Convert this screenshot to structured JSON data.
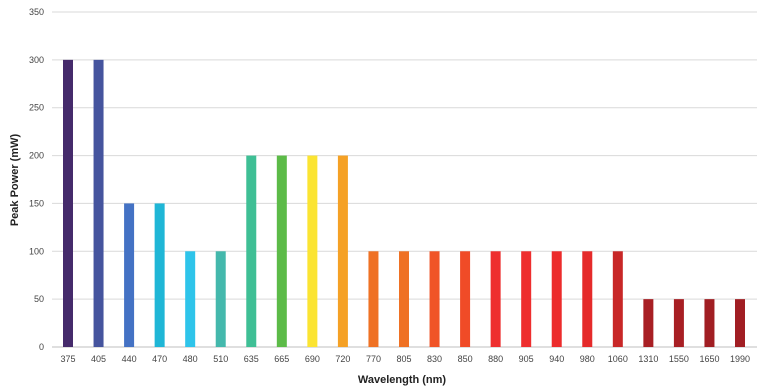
{
  "chart_data": {
    "type": "bar",
    "xlabel": "Wavelength (nm)",
    "ylabel": "Peak Power (mW)",
    "ylim": [
      0,
      350
    ],
    "yticks": [
      0,
      50,
      100,
      150,
      200,
      250,
      300,
      350
    ],
    "grid": true,
    "categories": [
      "375",
      "405",
      "440",
      "470",
      "480",
      "510",
      "635",
      "665",
      "690",
      "720",
      "770",
      "805",
      "830",
      "850",
      "880",
      "905",
      "940",
      "980",
      "1060",
      "1310",
      "1550",
      "1650",
      "1990"
    ],
    "values": [
      300,
      300,
      150,
      150,
      100,
      100,
      200,
      200,
      200,
      200,
      100,
      100,
      100,
      100,
      100,
      100,
      100,
      100,
      100,
      50,
      50,
      50,
      50
    ],
    "colors": [
      "#452a6b",
      "#45549e",
      "#4472c4",
      "#1fb6d6",
      "#2ec4ea",
      "#44b8ac",
      "#3fbf95",
      "#5cbb48",
      "#fbe432",
      "#f5a125",
      "#ef7124",
      "#ef7124",
      "#f05427",
      "#f04b27",
      "#ee2e2e",
      "#ee2e2e",
      "#ec2b2b",
      "#e52a2a",
      "#c82727",
      "#a81f24",
      "#a81f24",
      "#a11e23",
      "#a11e23"
    ]
  }
}
